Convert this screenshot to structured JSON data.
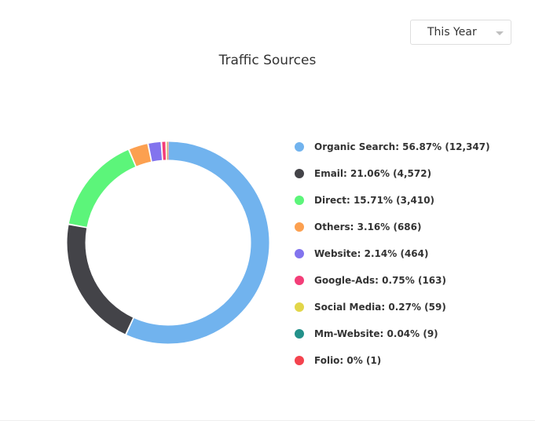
{
  "period_select": {
    "value": "This Year"
  },
  "chart_data": {
    "type": "pie",
    "title": "Traffic Sources",
    "series": [
      {
        "name": "Organic Search",
        "percent": 56.87,
        "count": 12347,
        "label": "Organic Search: 56.87% (12,347)",
        "color": "#71b3ee"
      },
      {
        "name": "Email",
        "percent": 21.06,
        "count": 4572,
        "label": "Email: 21.06% (4,572)",
        "color": "#434348"
      },
      {
        "name": "Direct",
        "percent": 15.71,
        "count": 3410,
        "label": "Direct: 15.71% (3,410)",
        "color": "#5cf57a"
      },
      {
        "name": "Others",
        "percent": 3.16,
        "count": 686,
        "label": "Others: 3.16% (686)",
        "color": "#fca050"
      },
      {
        "name": "Website",
        "percent": 2.14,
        "count": 464,
        "label": "Website: 2.14% (464)",
        "color": "#8274ee"
      },
      {
        "name": "Google-Ads",
        "percent": 0.75,
        "count": 163,
        "label": "Google-Ads: 0.75% (163)",
        "color": "#f33e78"
      },
      {
        "name": "Social Media",
        "percent": 0.27,
        "count": 59,
        "label": "Social Media: 0.27% (59)",
        "color": "#e2d649"
      },
      {
        "name": "Mm-Website",
        "percent": 0.04,
        "count": 9,
        "label": "Mm-Website: 0.04% (9)",
        "color": "#23918a"
      },
      {
        "name": "Folio",
        "percent": 0,
        "count": 1,
        "label": "Folio: 0% (1)",
        "color": "#f4434e"
      }
    ]
  }
}
